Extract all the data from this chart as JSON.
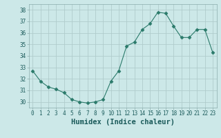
{
  "x": [
    0,
    1,
    2,
    3,
    4,
    5,
    6,
    7,
    8,
    9,
    10,
    11,
    12,
    13,
    14,
    15,
    16,
    17,
    18,
    19,
    20,
    21,
    22,
    23
  ],
  "y": [
    32.7,
    31.8,
    31.3,
    31.1,
    30.8,
    30.2,
    30.0,
    29.9,
    30.0,
    30.2,
    31.8,
    32.7,
    34.85,
    35.2,
    36.3,
    36.8,
    37.8,
    37.7,
    36.6,
    35.6,
    35.6,
    36.3,
    36.3,
    34.3
  ],
  "line_color": "#2a7a6a",
  "marker": "D",
  "marker_size": 2.5,
  "bg_color": "#cce8e8",
  "grid_color": "#b0cccc",
  "xlabel": "Humidex (Indice chaleur)",
  "ylim": [
    29.5,
    38.5
  ],
  "xlim": [
    -0.5,
    23.5
  ],
  "yticks": [
    30,
    31,
    32,
    33,
    34,
    35,
    36,
    37,
    38
  ],
  "xticks": [
    0,
    1,
    2,
    3,
    4,
    5,
    6,
    7,
    8,
    9,
    10,
    11,
    12,
    13,
    14,
    15,
    16,
    17,
    18,
    19,
    20,
    21,
    22,
    23
  ],
  "tick_fontsize": 5.5,
  "xlabel_fontsize": 7.5,
  "tick_color": "#1a5a5a",
  "spine_color": "#8aacac"
}
